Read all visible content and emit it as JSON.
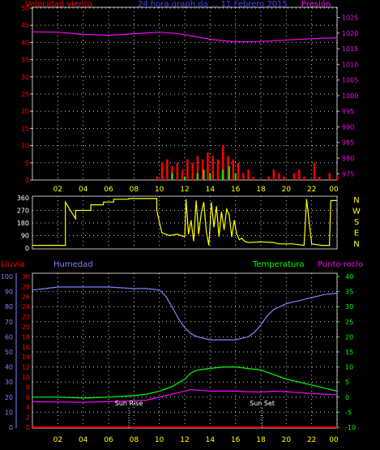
{
  "title": "24 hora graph.da ... 11 Febrero 2015",
  "top_left_label": "Velocidad viento",
  "top_right_label": "Presión",
  "compass": [
    "N",
    "W",
    "S",
    "E",
    "N"
  ],
  "bottom_labels": {
    "rain": "Lluvia",
    "humidity": "Humedad",
    "temperature": "Temperatura",
    "dewpoint": "Punto rocío"
  },
  "sun_rise_label": "Sun Rise",
  "sun_set_label": "Sun Set",
  "colors": {
    "wind": "#ff0000",
    "gust": "#00ff00",
    "pressure": "#ff00ff",
    "direction": "#ffff00",
    "rain": "#ff0000",
    "humidity": "#8080ff",
    "temperature": "#00ff00",
    "dewpoint": "#ff00ff"
  },
  "chart_data": [
    {
      "type": "line",
      "name": "wind-pressure",
      "x_ticks": [
        "02",
        "04",
        "06",
        "08",
        "10",
        "12",
        "14",
        "16",
        "18",
        "20",
        "22",
        "00"
      ],
      "y_left_ticks": [
        0,
        5,
        10,
        15,
        20,
        25,
        30,
        35,
        40,
        45,
        50
      ],
      "y_left_range": [
        0,
        50
      ],
      "y_right_ticks": [
        975,
        980,
        985,
        990,
        995,
        1000,
        1005,
        1010,
        1015,
        1020,
        1025
      ],
      "y_right_range": [
        973,
        1028
      ],
      "x_range": [
        0,
        24
      ],
      "series": [
        {
          "axis": "right",
          "x": [
            0,
            2,
            4,
            6,
            8,
            10,
            11,
            12,
            14,
            16,
            18,
            20,
            22,
            24
          ],
          "values": [
            1020.4,
            1020.3,
            1019.6,
            1019.3,
            1019.8,
            1020.3,
            1020.0,
            1019.5,
            1018.0,
            1017.2,
            1017.3,
            1017.8,
            1018.2,
            1018.5
          ]
        },
        {
          "axis": "left",
          "x": [
            0,
            1,
            2,
            3,
            4,
            5,
            6,
            7,
            8,
            9,
            9.8,
            10.2,
            10.6,
            11,
            11.4,
            11.8,
            12.2,
            12.6,
            13,
            13.4,
            13.8,
            14.2,
            14.6,
            15,
            15.4,
            15.8,
            16.2,
            16.6,
            17,
            17.4,
            17.8,
            18.2,
            18.6,
            19,
            19.4,
            19.8,
            20.2,
            20.6,
            21,
            21.4,
            21.8,
            22.2,
            22.6,
            23,
            23.4,
            24
          ],
          "values": [
            0,
            0,
            0,
            0,
            0,
            0,
            0,
            0,
            0,
            0,
            1,
            5,
            6,
            4,
            5,
            3,
            6,
            5,
            7,
            6,
            8,
            7,
            6,
            10,
            7,
            6,
            5,
            2,
            3,
            1,
            0,
            0,
            1,
            3,
            2,
            1,
            0,
            2,
            3,
            1,
            0,
            5,
            1,
            0,
            2,
            1
          ]
        },
        {
          "axis": "left",
          "x": [
            10,
            11,
            12,
            13,
            13.5,
            14,
            15,
            15.5,
            16,
            17,
            24
          ],
          "values": [
            0,
            2,
            1,
            2,
            3,
            2,
            3,
            4,
            2,
            0,
            0
          ]
        }
      ]
    },
    {
      "type": "line",
      "name": "wind-direction",
      "x_ticks": [
        "02",
        "04",
        "06",
        "08",
        "10",
        "12",
        "14",
        "16",
        "18",
        "20",
        "22",
        "00"
      ],
      "y_ticks": [
        0,
        90,
        180,
        270,
        360
      ],
      "y_range": [
        0,
        360
      ],
      "x_range": [
        0,
        24
      ],
      "series": [
        {
          "x": [
            0,
            2.6,
            2.6,
            3.4,
            3.4,
            4.6,
            4.6,
            5.6,
            5.6,
            6.4,
            6.4,
            7.6,
            7.6,
            9.8,
            9.8,
            10.2,
            10.8,
            11.4,
            12,
            12.1,
            12.3,
            12.5,
            12.7,
            12.9,
            13.1,
            13.3,
            13.5,
            13.7,
            13.9,
            14.1,
            14.3,
            14.5,
            14.7,
            14.9,
            15.1,
            15.3,
            15.5,
            15.7,
            15.9,
            16.1,
            16.3,
            16.5,
            16.7,
            17,
            18,
            19,
            19.4,
            20.5,
            21.4,
            21.6,
            22,
            22.8,
            23.4,
            23.5,
            24
          ],
          "values": [
            20,
            20,
            330,
            210,
            270,
            270,
            310,
            310,
            330,
            330,
            350,
            350,
            355,
            355,
            270,
            110,
            90,
            100,
            80,
            350,
            100,
            200,
            50,
            340,
            100,
            250,
            330,
            120,
            20,
            330,
            150,
            300,
            80,
            260,
            130,
            280,
            240,
            80,
            200,
            100,
            60,
            70,
            50,
            40,
            45,
            40,
            30,
            30,
            20,
            350,
            30,
            20,
            20,
            340,
            340
          ]
        }
      ]
    },
    {
      "type": "line",
      "name": "humidity-temperature",
      "x_ticks": [
        "02",
        "04",
        "06",
        "08",
        "10",
        "12",
        "14",
        "16",
        "18",
        "20",
        "22",
        "00"
      ],
      "y_humidity_ticks": [
        0,
        10,
        20,
        30,
        40,
        50,
        60,
        70,
        80,
        90,
        100
      ],
      "y_humidity_range": [
        0,
        100
      ],
      "y_rain_ticks": [
        0,
        2,
        4,
        6,
        8,
        10,
        12,
        14,
        16,
        18,
        20,
        22,
        24,
        26,
        28,
        30
      ],
      "y_rain_range": [
        0,
        30
      ],
      "y_temp_ticks": [
        -10,
        -5,
        0,
        5,
        10,
        15,
        20,
        25,
        30,
        35,
        40
      ],
      "y_temp_range": [
        -10,
        40
      ],
      "x_range": [
        0,
        24
      ],
      "series": [
        {
          "axis": "humidity",
          "x": [
            0,
            1,
            2,
            4,
            6,
            8,
            9,
            10,
            10.5,
            11,
            11.5,
            12,
            12.5,
            13,
            14,
            15,
            16,
            17,
            17.5,
            18,
            18.5,
            19,
            20,
            21,
            22,
            23,
            24
          ],
          "values": [
            91,
            92,
            93,
            93,
            93,
            92,
            92,
            91,
            87,
            80,
            72,
            66,
            62,
            60,
            58,
            58,
            58,
            60,
            63,
            68,
            74,
            78,
            82,
            84,
            86,
            88,
            89
          ]
        },
        {
          "axis": "temperature",
          "x": [
            0,
            2,
            4,
            6,
            8,
            9,
            10,
            11,
            12,
            12.5,
            13,
            14,
            15,
            16,
            17,
            18,
            19,
            20,
            21,
            22,
            23,
            24
          ],
          "values": [
            0,
            0,
            -0.3,
            0,
            0.5,
            1,
            2,
            3.5,
            6,
            8,
            9,
            9.5,
            10,
            10,
            9.5,
            9,
            7.5,
            6,
            5,
            4,
            3,
            2
          ]
        },
        {
          "axis": "temperature",
          "x": [
            0,
            2,
            4,
            6,
            8,
            9,
            10,
            11,
            12,
            12.5,
            13,
            14,
            15,
            16,
            17,
            18,
            19,
            20,
            21,
            22,
            23,
            24
          ],
          "values": [
            -1.5,
            -1.6,
            -1.7,
            -1.5,
            -1.2,
            -1,
            0,
            1,
            2,
            2.5,
            2.3,
            2,
            2,
            2,
            1.8,
            1.7,
            2,
            1.8,
            1.5,
            1.2,
            1,
            0.8
          ]
        },
        {
          "axis": "rain",
          "x": [
            0,
            24
          ],
          "values": [
            0,
            0
          ]
        }
      ],
      "annotations": [
        {
          "label_key": "sun_rise_label",
          "x": 7.6
        },
        {
          "label_key": "sun_set_label",
          "x": 18.1
        }
      ]
    }
  ]
}
